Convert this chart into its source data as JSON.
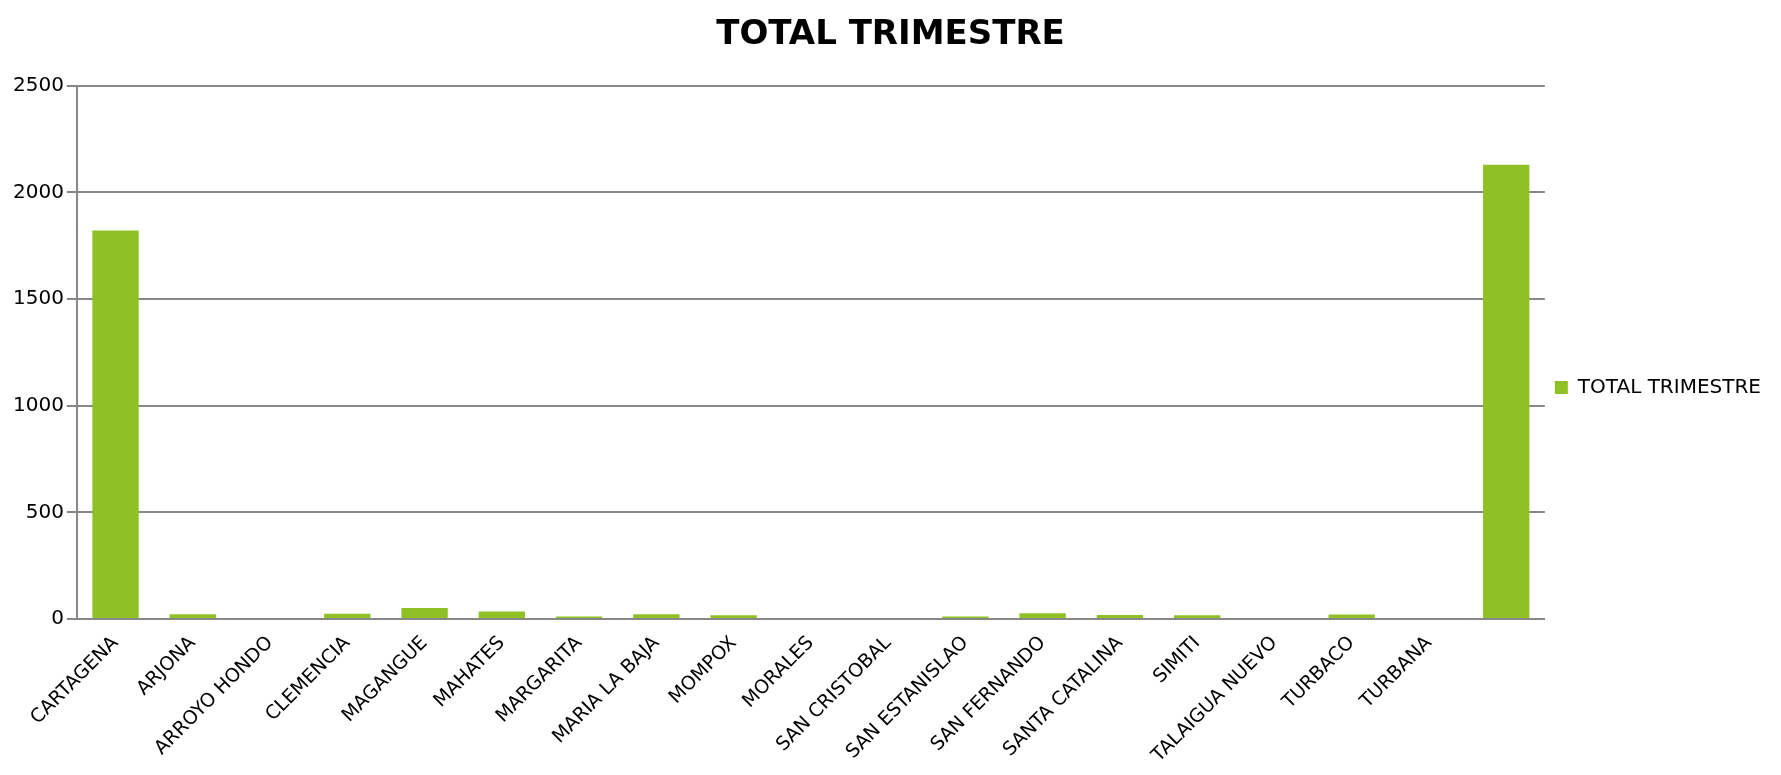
{
  "chart_data": {
    "type": "bar",
    "title": "TOTAL TRIMESTRE",
    "categories": [
      "CARTAGENA",
      "ARJONA",
      "ARROYO HONDO",
      "CLEMENCIA",
      "MAGANGUE",
      "MAHATES",
      "MARGARITA",
      "MARIA LA BAJA",
      "MOMPOX",
      "MORALES",
      "SAN CRISTOBAL",
      "SAN ESTANISLAO",
      "SAN FERNANDO",
      "SANTA CATALINA",
      "SIMITI",
      "TALAIGUA NUEVO",
      "TURBACO",
      "TURBANA",
      null
    ],
    "series": [
      {
        "name": "TOTAL TRIMESTRE",
        "color": "#8fc126",
        "values": [
          1822,
          22,
          5,
          25,
          52,
          35,
          12,
          22,
          17,
          0,
          0,
          12,
          27,
          19,
          17,
          0,
          21,
          4,
          2130
        ]
      }
    ],
    "ylim": [
      0,
      2500
    ],
    "yticks": [
      0,
      500,
      1000,
      1500,
      2000,
      2500
    ],
    "grid": "y",
    "legend": "right"
  }
}
